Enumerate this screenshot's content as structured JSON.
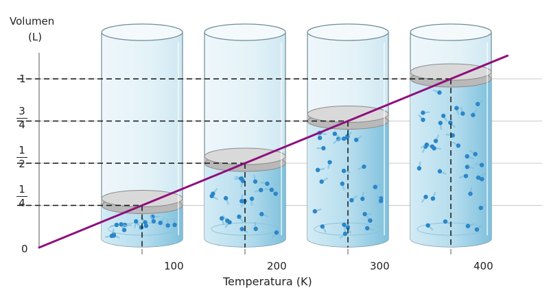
{
  "axis": {
    "y_title_line1": "Volumen",
    "y_title_line2": "(L)",
    "x_title": "Temperatura (K)",
    "origin_label": "0",
    "y_one": "1",
    "y_quarter": {
      "num": "1",
      "den": "4"
    },
    "y_half": {
      "num": "1",
      "den": "2"
    },
    "y_three_quarters": {
      "num": "3",
      "den": "4"
    },
    "x_ticks": [
      "100",
      "200",
      "300",
      "400"
    ]
  },
  "chart_data": {
    "type": "line",
    "xlabel": "Temperatura (K)",
    "ylabel": "Volumen (L)",
    "x": [
      0,
      100,
      200,
      300,
      400
    ],
    "values": [
      0,
      0.25,
      0.5,
      0.75,
      1.0
    ],
    "ylim": [
      0,
      1
    ],
    "cylinders": [
      {
        "temperature": 100,
        "volume": 0.25
      },
      {
        "temperature": 200,
        "volume": 0.5
      },
      {
        "temperature": 300,
        "volume": 0.75
      },
      {
        "temperature": 400,
        "volume": 1.0
      }
    ]
  },
  "colors": {
    "line": "#8e0f7c",
    "gas": "#a9d5e8",
    "gas_dark": "#6bb4d3",
    "glass": "#eaf5fa",
    "piston": "#d9d9d9",
    "particle": "#2a86c8"
  }
}
